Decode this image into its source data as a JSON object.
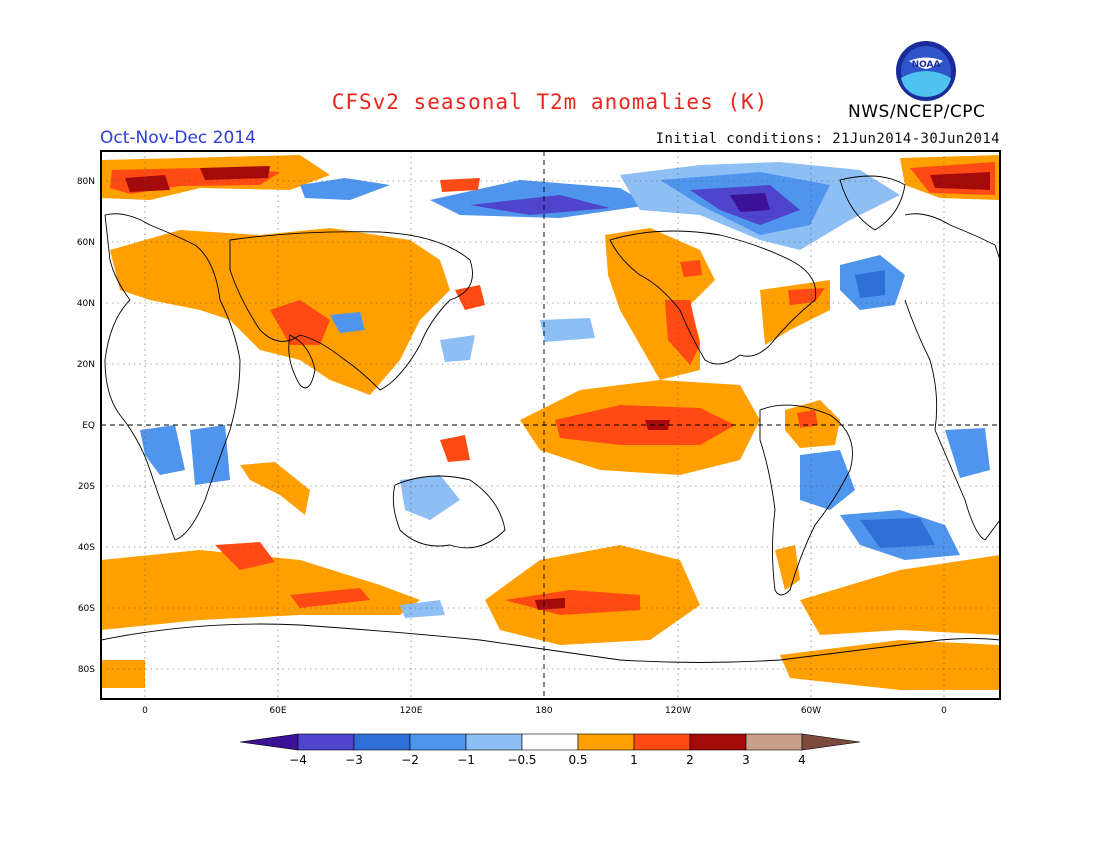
{
  "title": "CFSv2 seasonal T2m anomalies (K)",
  "organization": "NWS/NCEP/CPC",
  "logo_text": "NOAA",
  "season": "Oct-Nov-Dec 2014",
  "initial_conditions": "Initial conditions: 21Jun2014-30Jun2014",
  "latitude_labels": [
    "80N",
    "60N",
    "40N",
    "20N",
    "EQ",
    "20S",
    "40S",
    "60S",
    "80S"
  ],
  "longitude_labels": [
    "0",
    "60E",
    "120E",
    "180",
    "120W",
    "60W",
    "0"
  ],
  "colorbar": {
    "labels": [
      "−4",
      "−3",
      "−2",
      "−1",
      "−0.5",
      "0.5",
      "1",
      "2",
      "3",
      "4"
    ],
    "colors": [
      "#3b1296",
      "#4f44cc",
      "#2f6fd8",
      "#4f95ee",
      "#8dbff4",
      "#ffffff",
      "#ff9f00",
      "#ff4a14",
      "#a40a0a",
      "#c8a08a",
      "#7b4a3c"
    ]
  },
  "colors": {
    "title": "#e8261e",
    "season": "#2a3cd6",
    "frame": "#000000"
  }
}
